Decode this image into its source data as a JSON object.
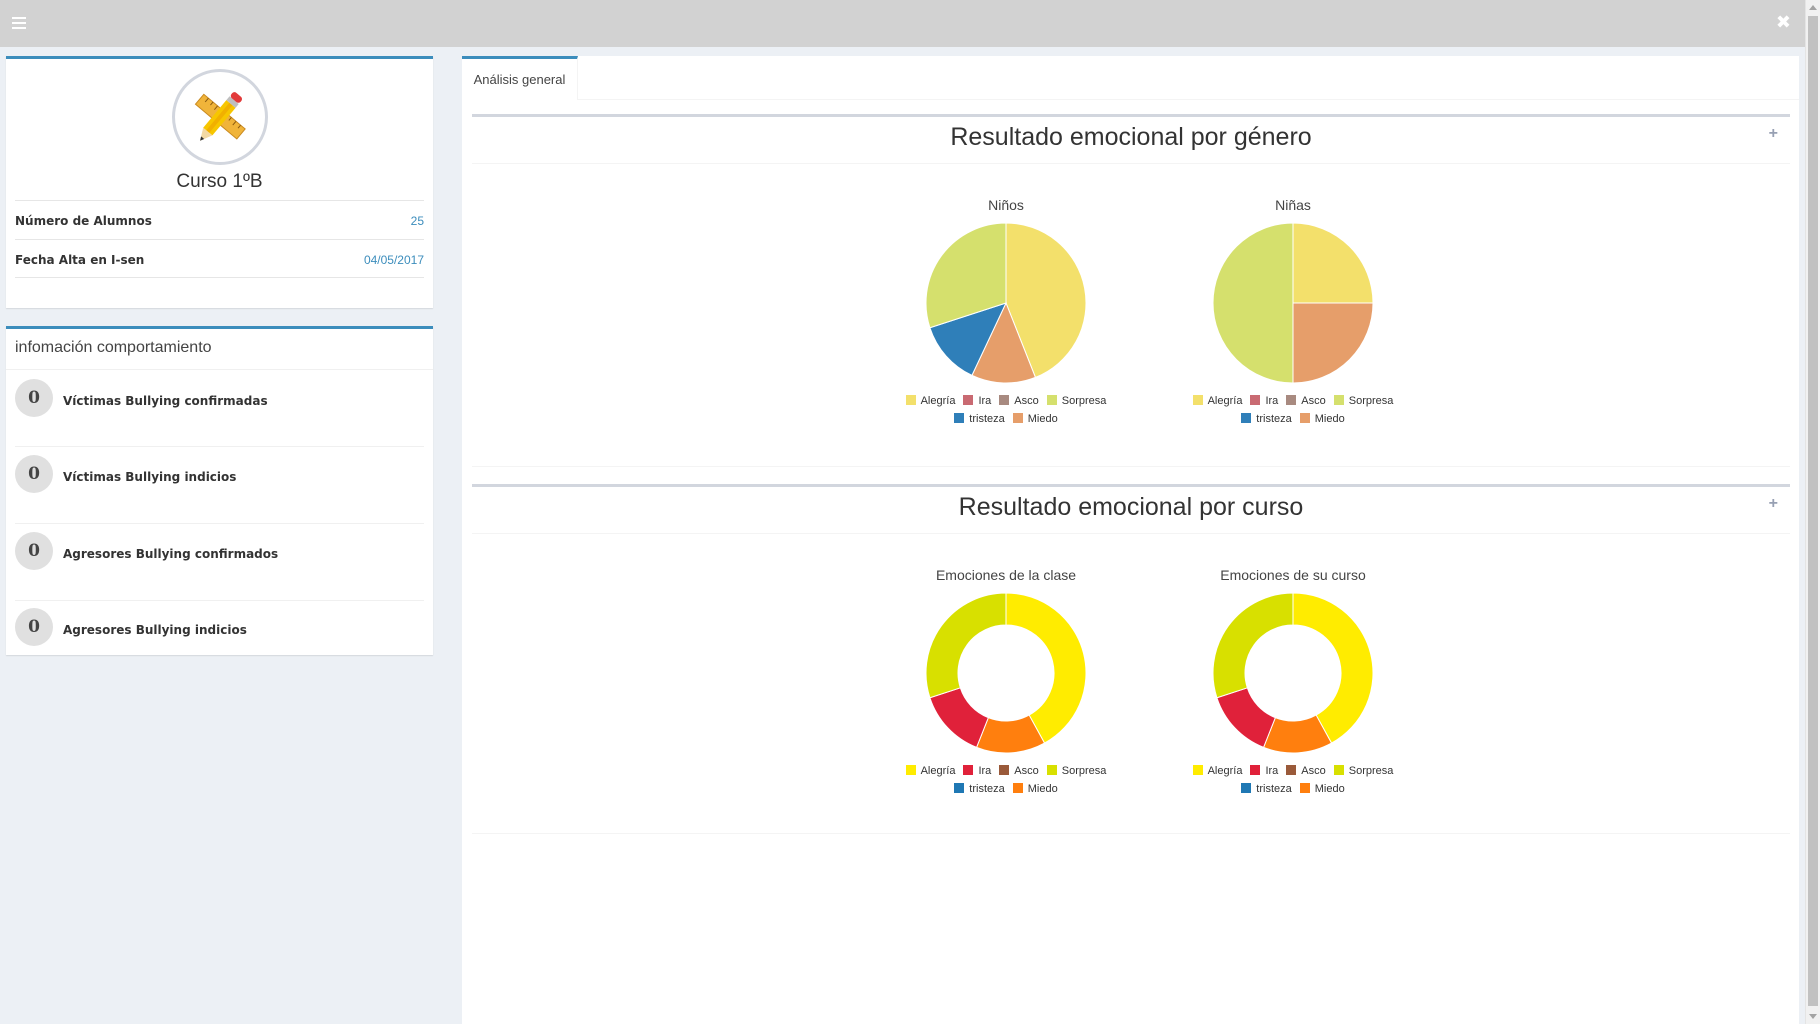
{
  "topbar": {
    "menu_icon": "hamburger-menu-icon",
    "close_label": "✖"
  },
  "profile": {
    "name": "Curso 1ºB",
    "rows": [
      {
        "label": "Número de Alumnos",
        "value": "25"
      },
      {
        "label": "Fecha Alta en I-sen",
        "value": "04/05/2017"
      }
    ]
  },
  "behavior": {
    "title": "infomación comportamiento",
    "items": [
      {
        "count": "0",
        "label": "Víctimas Bullying confirmadas"
      },
      {
        "count": "0",
        "label": "Víctimas Bullying indicios"
      },
      {
        "count": "0",
        "label": "Agresores Bullying confirmados"
      },
      {
        "count": "0",
        "label": "Agresores Bullying indicios"
      }
    ]
  },
  "tabs": [
    {
      "label": "Análisis general"
    }
  ],
  "sections": [
    {
      "title": "Resultado emocional por género",
      "toggle": "+"
    },
    {
      "title": "Resultado emocional por curso",
      "toggle": "+"
    }
  ],
  "legend_labels": [
    "Alegría",
    "Ira",
    "Asco",
    "Sorpresa",
    "tristeza",
    "Miedo"
  ],
  "palettes": {
    "muted": [
      "#f3e06b",
      "#c96a72",
      "#a88a80",
      "#d5e06d",
      "#2f7fb9",
      "#e69e6a"
    ],
    "vivid": [
      "#ffec00",
      "#e0213a",
      "#9a5a3a",
      "#d8e000",
      "#1f78b4",
      "#ff7f0e"
    ]
  },
  "chart_data": [
    {
      "type": "pie",
      "title": "Niños",
      "categories": [
        "Alegría",
        "Ira",
        "Asco",
        "Sorpresa",
        "tristeza",
        "Miedo"
      ],
      "values": [
        44,
        0,
        0,
        30,
        13,
        13
      ],
      "palette": "muted"
    },
    {
      "type": "pie",
      "title": "Niñas",
      "categories": [
        "Alegría",
        "Ira",
        "Asco",
        "Sorpresa",
        "tristeza",
        "Miedo"
      ],
      "values": [
        25,
        0,
        0,
        50,
        0,
        25
      ],
      "palette": "muted"
    },
    {
      "type": "pie",
      "subtype": "doughnut",
      "title": "Emociones de la clase",
      "categories": [
        "Alegría",
        "Ira",
        "Asco",
        "Sorpresa",
        "tristeza",
        "Miedo"
      ],
      "values": [
        42,
        14,
        0,
        30,
        0,
        14
      ],
      "palette": "vivid"
    },
    {
      "type": "pie",
      "subtype": "doughnut",
      "title": "Emociones de su curso",
      "categories": [
        "Alegría",
        "Ira",
        "Asco",
        "Sorpresa",
        "tristeza",
        "Miedo"
      ],
      "values": [
        42,
        14,
        0,
        30,
        0,
        14
      ],
      "palette": "vivid"
    }
  ]
}
